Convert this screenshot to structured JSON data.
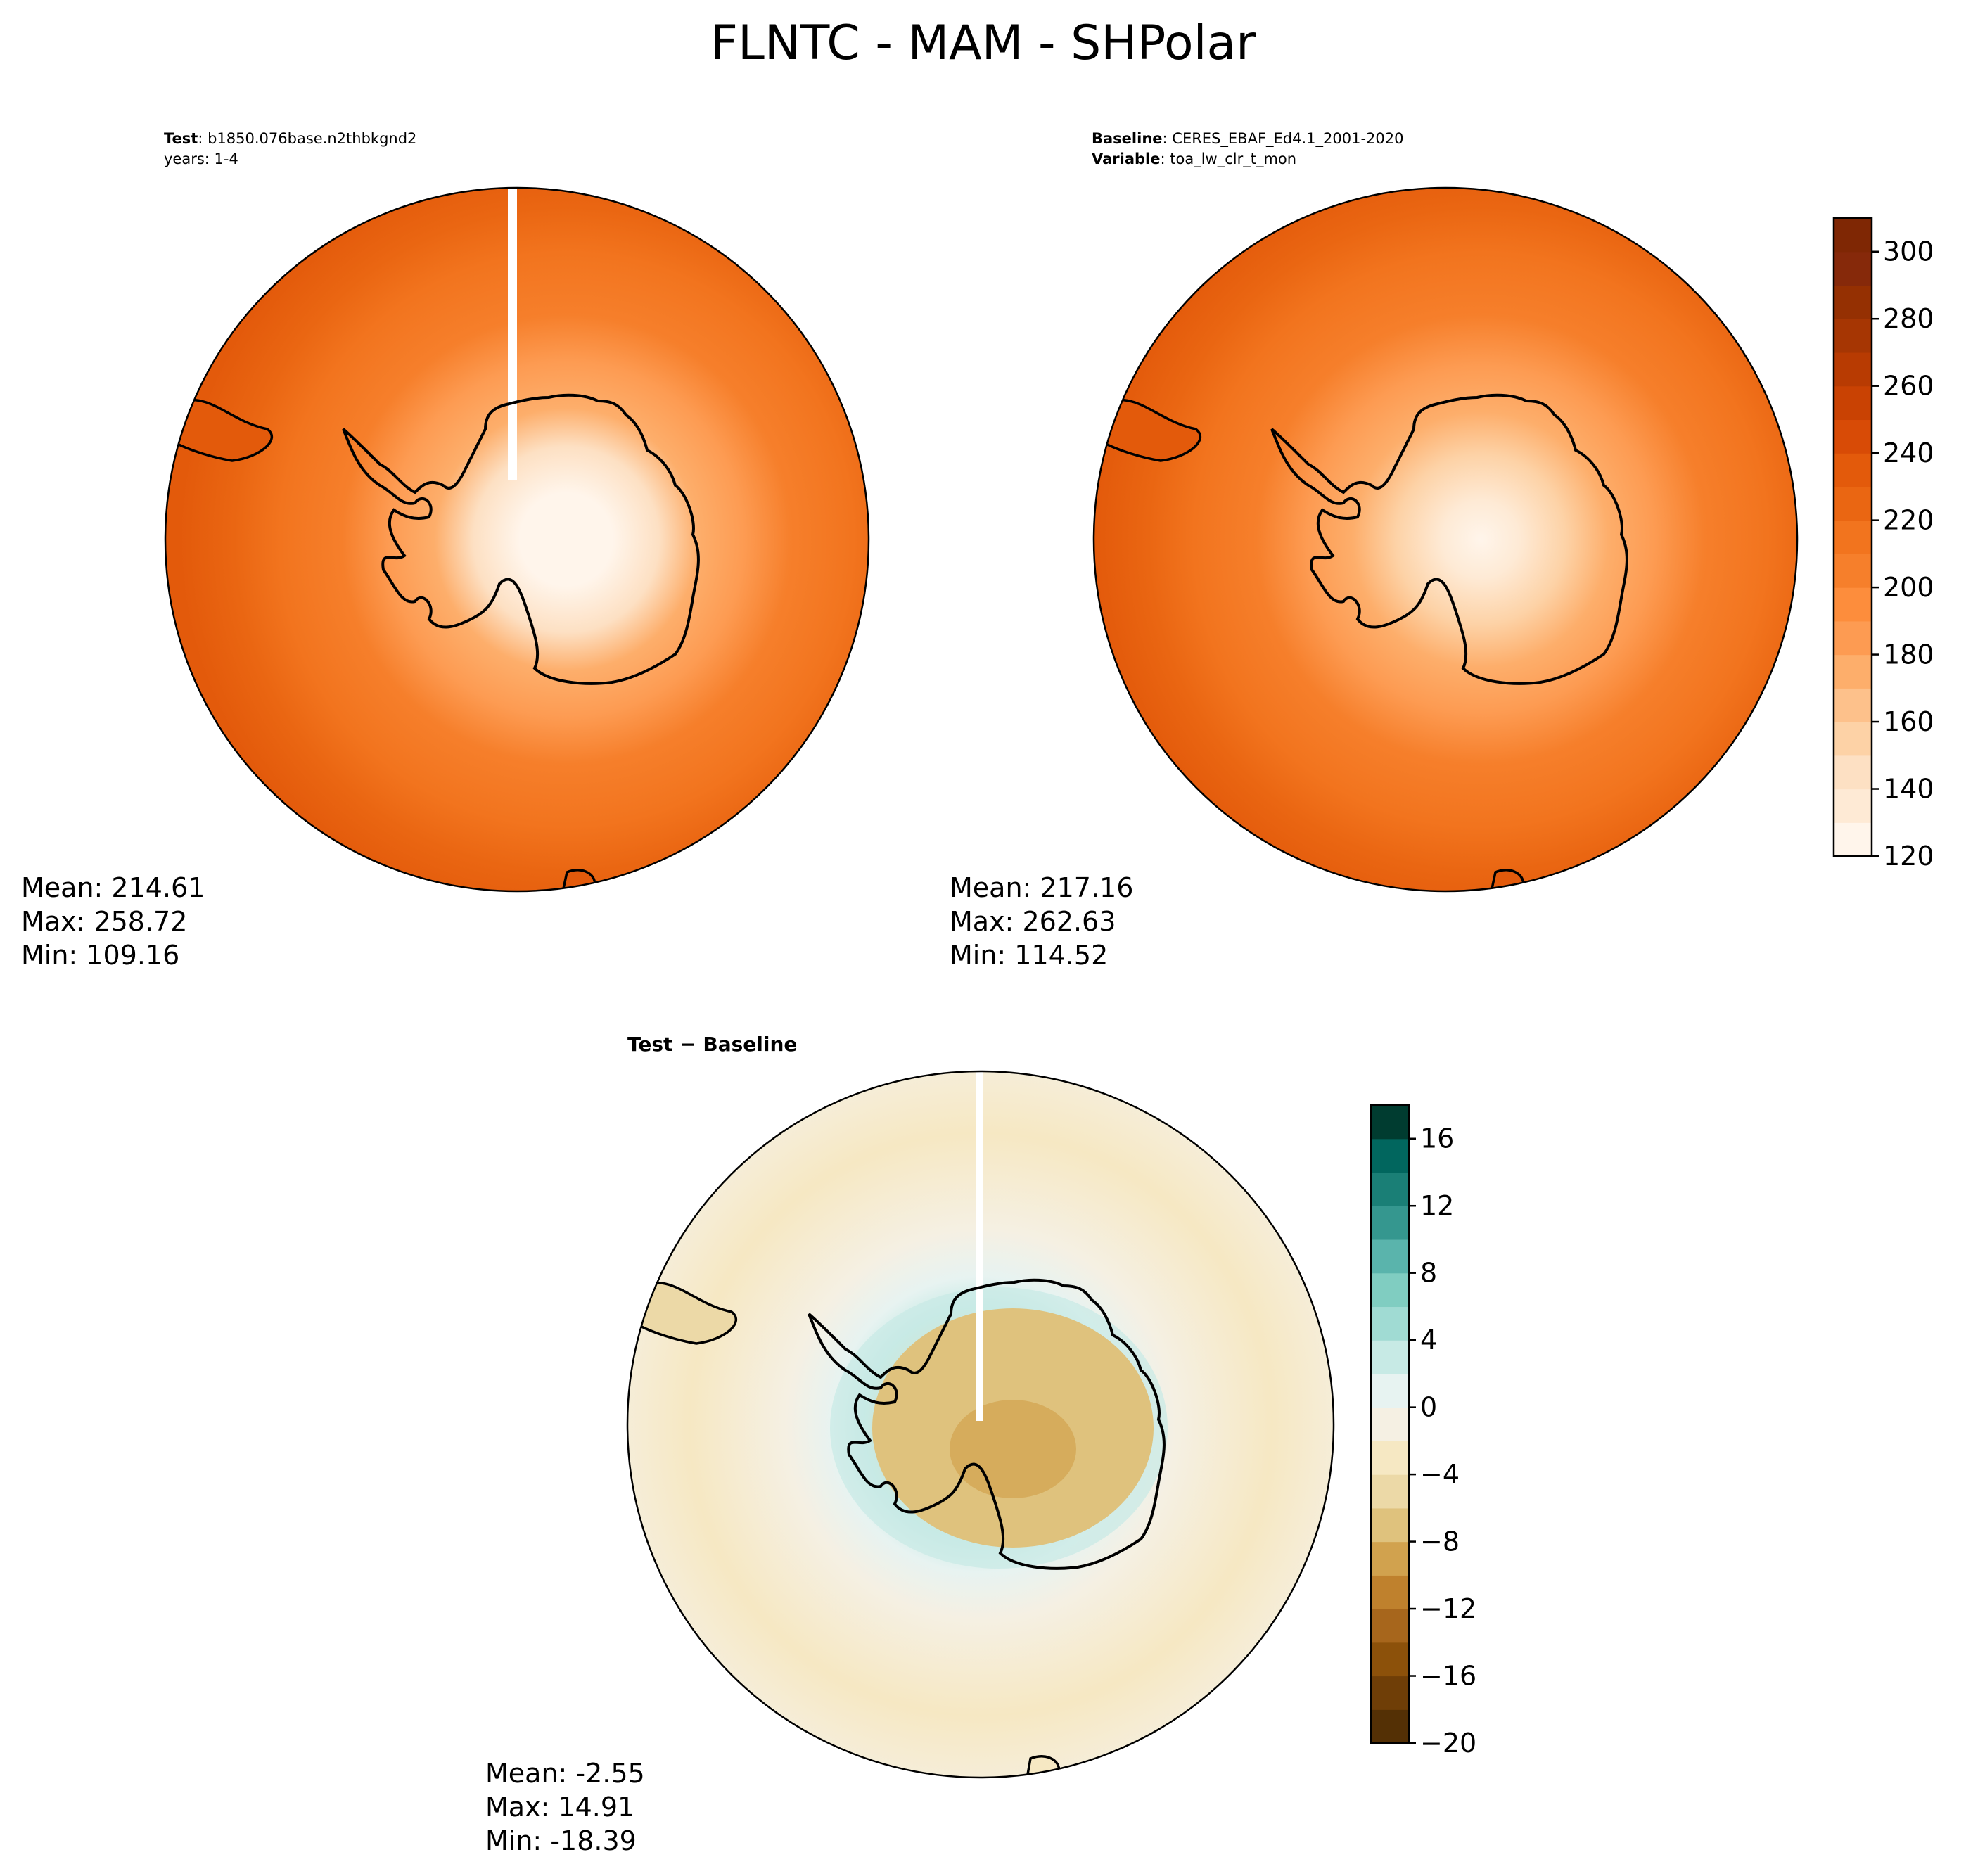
{
  "figure": {
    "title": "FLNTC - MAM - SHPolar"
  },
  "panels": {
    "test": {
      "label_key": "Test",
      "label_value": "b1850.076base.n2thbkgnd2",
      "line2": "years: 1-4",
      "mean": "Mean: 214.61",
      "max": "Max: 258.72",
      "min": "Min: 109.16"
    },
    "baseline": {
      "label_key": "Baseline",
      "label_value": "CERES_EBAF_Ed4.1_2001-2020",
      "line2_key": "Variable",
      "line2_value": "toa_lw_clr_t_mon",
      "mean": "Mean: 217.16",
      "max": "Max: 262.63",
      "min": "Min: 114.52"
    },
    "diff": {
      "title": "Test − Baseline",
      "mean": "Mean: -2.55",
      "max": "Max: 14.91",
      "min": "Min: -18.39"
    }
  },
  "colorbars": {
    "top": {
      "ticks": [
        "120",
        "140",
        "160",
        "180",
        "200",
        "220",
        "240",
        "260",
        "280",
        "300"
      ],
      "tick_values": [
        120,
        140,
        160,
        180,
        200,
        220,
        240,
        260,
        280,
        300
      ],
      "range": [
        120,
        310
      ],
      "levels": 19,
      "colormap": "Oranges",
      "colors": [
        "#fff5eb",
        "#feead5",
        "#fde0c3",
        "#fdd2a6",
        "#fdc18b",
        "#fdae6b",
        "#fd9b52",
        "#fd8d3c",
        "#f67f2b",
        "#f2741e",
        "#ea6612",
        "#e35a0b",
        "#d84b06",
        "#c94203",
        "#b83b02",
        "#a63603",
        "#953002",
        "#86290a",
        "#7f2704"
      ]
    },
    "bottom": {
      "ticks": [
        "−20",
        "−16",
        "−12",
        "−8",
        "−4",
        "0",
        "4",
        "8",
        "12",
        "16"
      ],
      "tick_values": [
        -20,
        -16,
        -12,
        -8,
        -4,
        0,
        4,
        8,
        12,
        16
      ],
      "range": [
        -20,
        18
      ],
      "levels": 19,
      "colormap": "BrBG",
      "colors": [
        "#543005",
        "#6f3e07",
        "#8c510a",
        "#a7661c",
        "#bf812d",
        "#d1a24e",
        "#dfc27d",
        "#ecd9a7",
        "#f6e8c3",
        "#f5f0e3",
        "#e7f3f1",
        "#c7eae5",
        "#a0dbd3",
        "#80cdc1",
        "#5ab4ac",
        "#35978f",
        "#1a7f76",
        "#01665e",
        "#003c30"
      ]
    }
  },
  "map_colors": {
    "continent_outline": "#000000",
    "circle_edge": "#000000"
  }
}
